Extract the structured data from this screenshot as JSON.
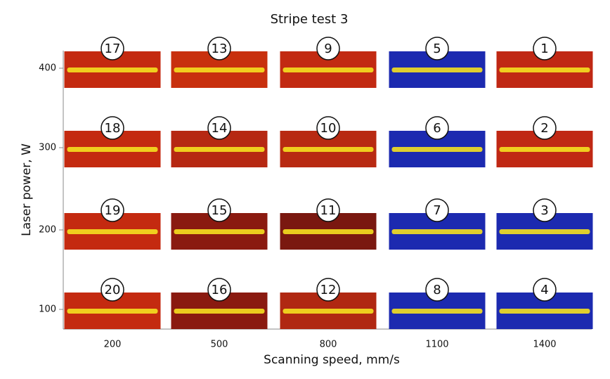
{
  "chart_data": {
    "type": "grid",
    "title": "Stripe test 3",
    "x_label": "Scanning speed, mm/s",
    "y_label": "Laser power, W",
    "columns": [
      200,
      500,
      800,
      1100,
      1400
    ],
    "rows": [
      400,
      300,
      200,
      100
    ],
    "labels": [
      [
        17,
        13,
        9,
        5,
        1
      ],
      [
        18,
        14,
        10,
        6,
        2
      ],
      [
        19,
        15,
        11,
        7,
        3
      ],
      [
        20,
        16,
        12,
        8,
        4
      ]
    ],
    "colors": [
      [
        "#c42a10",
        "#c8300e",
        "#c22a12",
        "#1c2ab0",
        "#c02814"
      ],
      [
        "#c42a10",
        "#b62812",
        "#b82a12",
        "#1c2ab0",
        "#c02814"
      ],
      [
        "#c42a10",
        "#8a1a10",
        "#7a1810",
        "#1c2ab0",
        "#1c2ab0"
      ],
      [
        "#c42a10",
        "#8a1a10",
        "#b02812",
        "#1c2ab0",
        "#1c2ab0"
      ]
    ]
  }
}
